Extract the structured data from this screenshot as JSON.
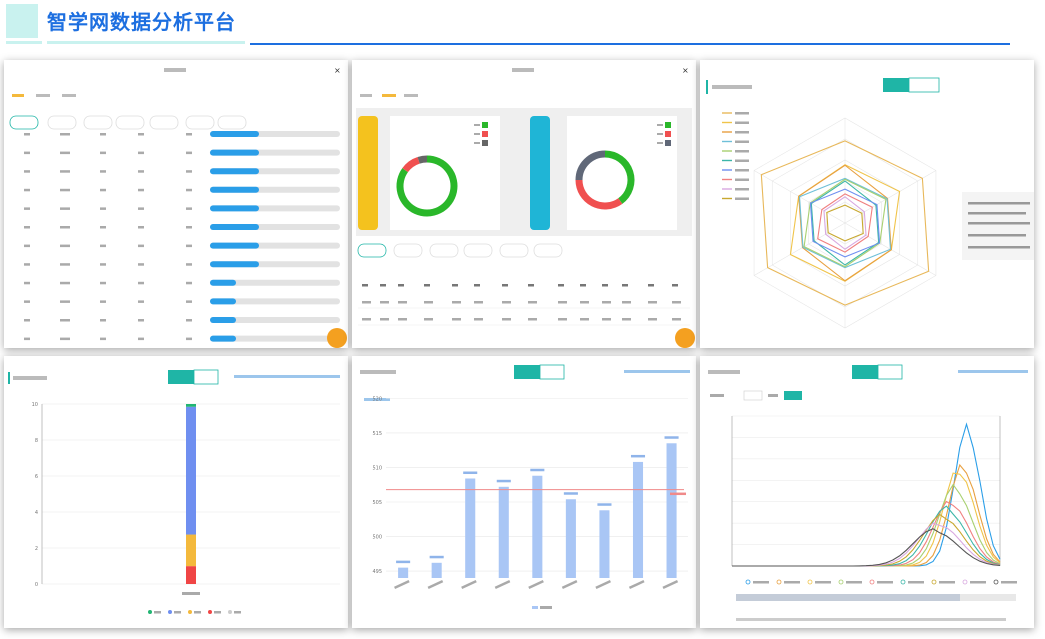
{
  "header": {
    "title": "智学网数据分析平台"
  },
  "accent": "#1d6fe0",
  "teal": "#1fb5a6",
  "panels": {
    "p1": {
      "kind": "modal-table",
      "close_icon": "close-icon"
    },
    "p2": {
      "kind": "modal-donuts",
      "close_icon": "close-icon"
    },
    "p3": {
      "kind": "radar",
      "toggle": [
        "",
        "",
        ""
      ]
    },
    "p4": {
      "kind": "stacked-bar",
      "y_ticks": [
        "0",
        "2",
        "4",
        "6",
        "8",
        "10"
      ]
    },
    "p5": {
      "kind": "bar-with-line",
      "y_ticks": [
        "495",
        "500",
        "505",
        "510",
        "515",
        "520"
      ]
    },
    "p6": {
      "kind": "multi-line"
    }
  },
  "chart_data": [
    {
      "type": "bar",
      "panel": "p1",
      "values": [
        0.3,
        0.3,
        0.3,
        0.3,
        0.3,
        0.3,
        0.3,
        0.3,
        0.2,
        0.2,
        0.2,
        0.2,
        0.2
      ]
    },
    {
      "type": "pie",
      "panel": "p2-left",
      "slices": [
        {
          "value": 0.85,
          "color": "#2ab72a"
        },
        {
          "value": 0.1,
          "color": "#f05050"
        },
        {
          "value": 0.05,
          "color": "#666"
        }
      ]
    },
    {
      "type": "pie",
      "panel": "p2-right",
      "slices": [
        {
          "value": 0.4,
          "color": "#2ab72a"
        },
        {
          "value": 0.35,
          "color": "#f05050"
        },
        {
          "value": 0.25,
          "color": "#606878"
        }
      ]
    },
    {
      "type": "radar",
      "panel": "p3",
      "axes": 6,
      "series_count": 10
    },
    {
      "type": "bar",
      "panel": "p4",
      "categories": [
        ""
      ],
      "stacks": [
        {
          "value": 9.3,
          "color": "#6f8ff0"
        },
        {
          "value": 2.3,
          "color": "#f4b93c"
        },
        {
          "value": 1.3,
          "color": "#f04545"
        },
        {
          "value": 0.2,
          "color": "#22b573"
        }
      ],
      "ylim": [
        0,
        10
      ]
    },
    {
      "type": "bar",
      "panel": "p5",
      "values": [
        495.5,
        496.2,
        508.4,
        507.2,
        508.8,
        505.4,
        503.8,
        510.8,
        513.5
      ],
      "ylim": [
        494,
        516
      ],
      "reference_line": 506.8
    },
    {
      "type": "line",
      "panel": "p6",
      "series_count": 9
    }
  ]
}
